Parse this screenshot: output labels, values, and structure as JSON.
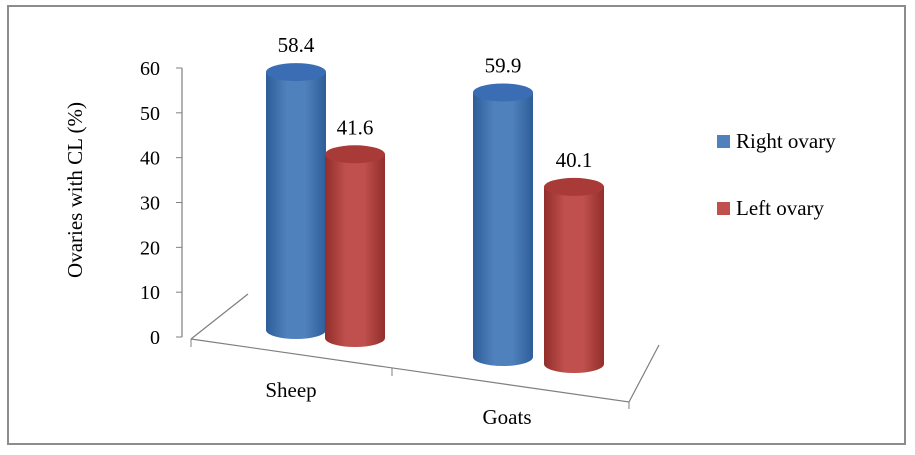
{
  "chart_data": {
    "type": "bar",
    "style": "3d-cylinder",
    "title": "",
    "xlabel": "",
    "ylabel": "Ovaries with CL (%)",
    "ylim": [
      0,
      60
    ],
    "yticks": [
      "0",
      "10",
      "20",
      "30",
      "40",
      "50",
      "60"
    ],
    "categories": [
      "Sheep",
      "Goats"
    ],
    "series": [
      {
        "name": "Right ovary",
        "values": [
          58.4,
          59.9
        ],
        "labels": [
          "58.4",
          "59.9"
        ],
        "color": "#4F81BD",
        "color_dark": "#2E5E9A",
        "color_top": "#3A6DB4"
      },
      {
        "name": "Left ovary",
        "values": [
          41.6,
          40.1
        ],
        "labels": [
          "41.6",
          "40.1"
        ],
        "color": "#C0504D",
        "color_dark": "#922E2B",
        "color_top": "#A83A37"
      }
    ],
    "legend_position": "right",
    "grid": false
  }
}
